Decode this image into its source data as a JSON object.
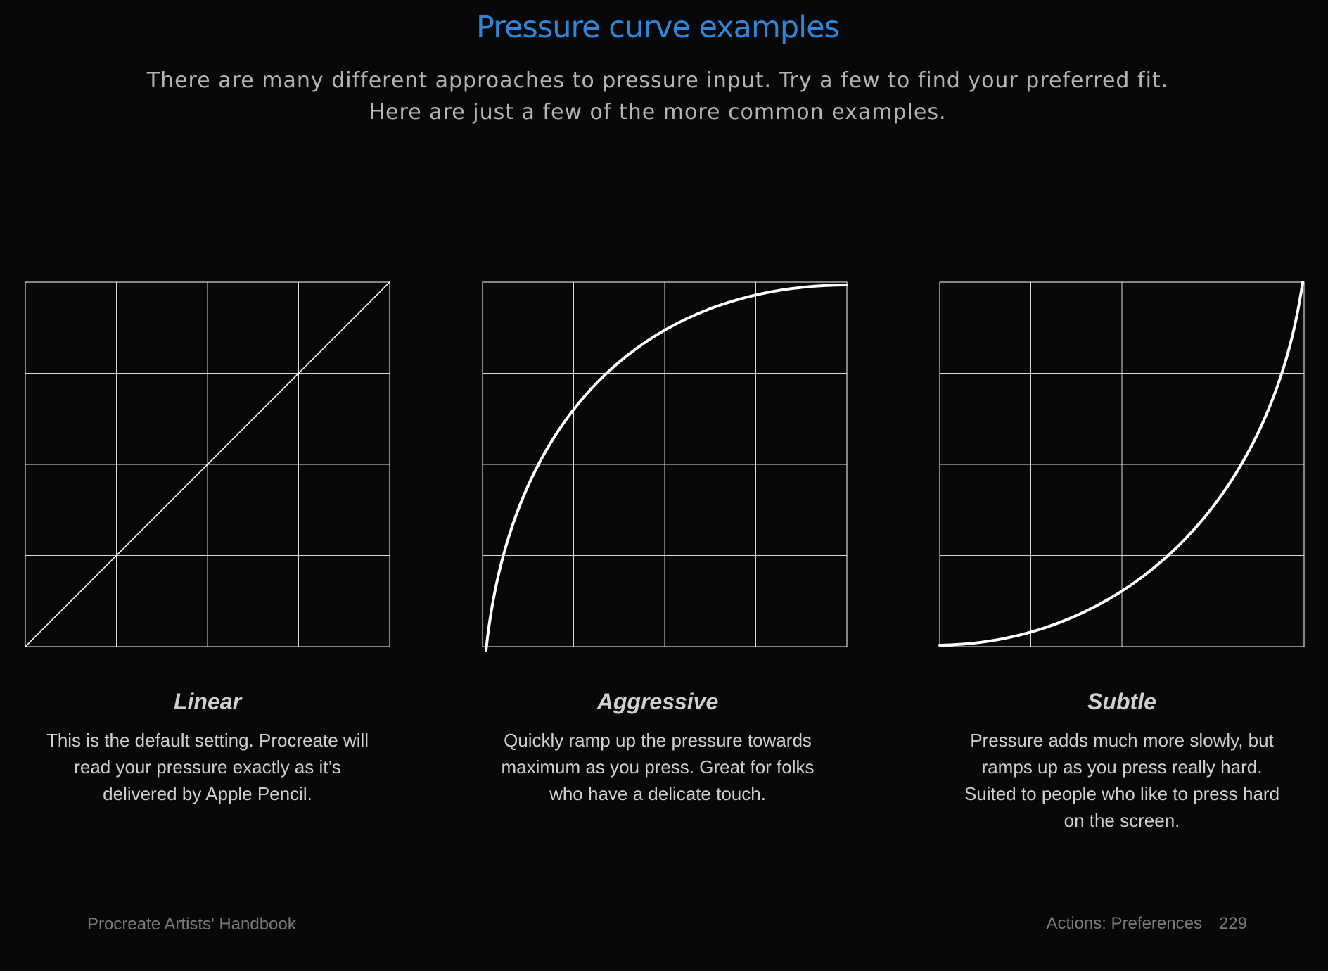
{
  "header": {
    "title": "Pressure curve examples",
    "intro": "There are many different approaches to pressure input. Try a few to find your preferred fit. Here are just a few of the more common examples."
  },
  "colors": {
    "title": "#2e86d8",
    "background": "#080808",
    "grid": "#d8d8d8",
    "curve": "#ffffff"
  },
  "curves": [
    {
      "name": "Linear",
      "description": "This is the default setting. Procreate will read your pressure exactly as it’s delivered by Apple Pencil.",
      "shape": "linear"
    },
    {
      "name": "Aggressive",
      "description": "Quickly ramp up the pressure towards maximum as you press. Great for folks who have a delicate touch.",
      "shape": "aggressive"
    },
    {
      "name": "Subtle",
      "description": "Pressure adds much more slowly, but ramps up as you press really hard. Suited to people who like to press hard on the screen.",
      "shape": "subtle"
    }
  ],
  "footer": {
    "book_title": "Procreate Artists' Handbook",
    "section": "Actions: Preferences",
    "page_number": "229"
  }
}
